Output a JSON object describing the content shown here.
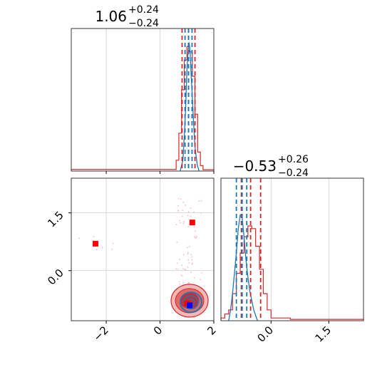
{
  "chart_data": {
    "type": "corner",
    "parameters": [
      {
        "title": {
          "value": "1.06",
          "plus": "+0.24",
          "minus": "−0.24"
        },
        "range": [
          -3.3,
          2.0
        ],
        "ticks": [
          -2,
          0,
          2
        ],
        "tick_labels": [
          "−2",
          "0",
          "2"
        ],
        "hist_red": {
          "edges": [
            -3.3,
            0.6,
            0.7,
            0.8,
            0.9,
            1.0,
            1.1,
            1.2,
            1.3,
            1.4,
            1.5,
            1.6,
            2.0
          ],
          "counts": [
            0.012,
            0.08,
            0.28,
            0.6,
            0.82,
            0.92,
            0.88,
            0.7,
            0.42,
            0.14,
            0.04,
            0.01
          ]
        },
        "hist_blue": {
          "x": [
            0.75,
            0.85,
            0.9,
            0.95,
            1.0,
            1.05,
            1.08,
            1.12,
            1.16,
            1.2,
            1.25,
            1.3,
            1.38,
            1.45
          ],
          "y": [
            0.0,
            0.08,
            0.25,
            0.45,
            0.75,
            0.9,
            0.95,
            0.88,
            0.7,
            0.55,
            0.35,
            0.18,
            0.05,
            0.0
          ]
        },
        "quantiles_red": [
          0.82,
          1.06,
          1.3
        ],
        "quantiles_blue": [
          0.93,
          1.06,
          1.19
        ]
      },
      {
        "title": {
          "value": "−0.53",
          "plus": "+0.26",
          "minus": "−0.24"
        },
        "range": [
          -1.3,
          2.4
        ],
        "ticks": [
          0.0,
          1.5
        ],
        "tick_labels": [
          "0.0",
          "1.5"
        ],
        "hist_red": {
          "edges": [
            -1.3,
            -1.2,
            -1.1,
            -1.0,
            -0.9,
            -0.8,
            -0.7,
            -0.6,
            -0.5,
            -0.4,
            -0.3,
            -0.2,
            -0.1,
            0.0,
            0.5,
            2.4
          ],
          "counts": [
            0.02,
            0.05,
            0.08,
            0.2,
            0.35,
            0.5,
            0.62,
            0.7,
            0.68,
            0.55,
            0.38,
            0.2,
            0.08,
            0.02,
            0.01
          ]
        },
        "hist_blue": {
          "x": [
            -1.1,
            -1.05,
            -1.0,
            -0.95,
            -0.9,
            -0.85,
            -0.8,
            -0.75,
            -0.7,
            -0.65,
            -0.6,
            -0.55,
            -0.5,
            -0.45,
            -0.4,
            -0.35
          ],
          "y": [
            0.0,
            0.08,
            0.2,
            0.35,
            0.5,
            0.68,
            0.78,
            0.76,
            0.62,
            0.45,
            0.32,
            0.22,
            0.15,
            0.08,
            0.04,
            0.0
          ]
        },
        "quantiles_red": [
          -0.77,
          -0.53,
          -0.27
        ],
        "quantiles_blue": [
          -0.9,
          -0.75,
          -0.63
        ]
      }
    ],
    "joint": {
      "outliers": [
        {
          "x": -2.4,
          "y": 0.7
        },
        {
          "x": 1.2,
          "y": 1.25
        }
      ],
      "truth_red": {
        "x": 1.0,
        "y": -0.85
      },
      "truth_blue": {
        "x": 1.1,
        "y": -0.9
      },
      "red_center": {
        "x": 1.1,
        "y": -0.78
      },
      "blue_center": {
        "x": 1.15,
        "y": -0.82
      }
    },
    "colors": {
      "red": "#d62728",
      "blue": "#1f77b4",
      "red_fill_light": "#f2b8b8",
      "red_fill_mid": "#e06a6a",
      "red_fill_dark": "#d62728",
      "marker_blue": "#0000ff",
      "marker_red": "#ff0000",
      "grid": "#cfcfcf"
    },
    "grid": true
  }
}
